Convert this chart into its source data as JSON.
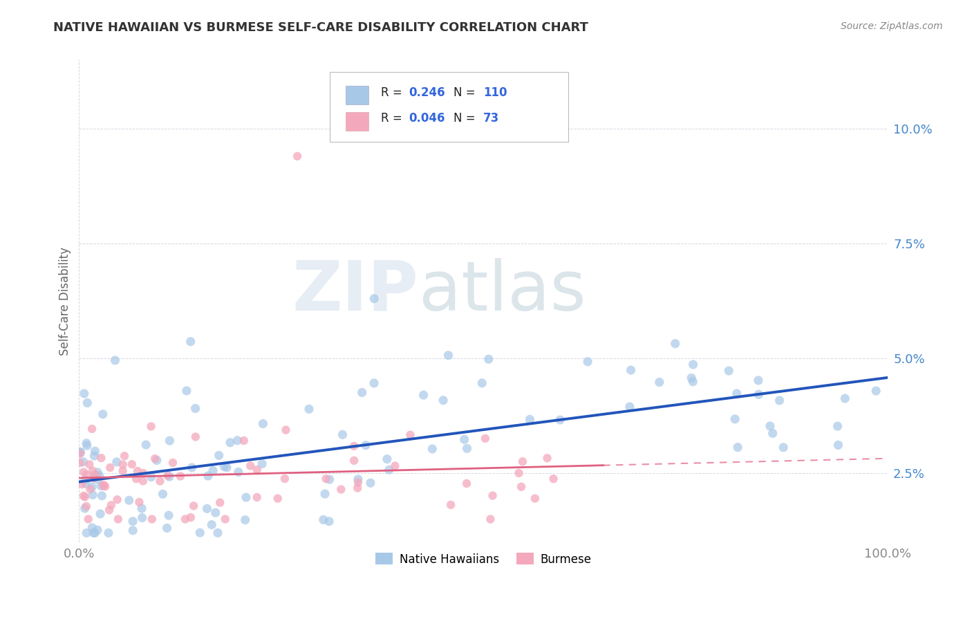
{
  "title": "NATIVE HAWAIIAN VS BURMESE SELF-CARE DISABILITY CORRELATION CHART",
  "source": "Source: ZipAtlas.com",
  "ylabel": "Self-Care Disability",
  "watermark": "ZIPatlas",
  "xlim": [
    0,
    100
  ],
  "ylim": [
    1.0,
    11.5
  ],
  "yticks": [
    2.5,
    5.0,
    7.5,
    10.0
  ],
  "xtick_labels": [
    "0.0%",
    "100.0%"
  ],
  "ytick_labels": [
    "2.5%",
    "5.0%",
    "7.5%",
    "10.0%"
  ],
  "blue_color": "#A8C8E8",
  "pink_color": "#F4A8BC",
  "blue_line_color": "#2255BB",
  "pink_line_color": "#E06080",
  "background_color": "#FFFFFF",
  "grid_color": "#CCCCDD",
  "legend_R1": "0.246",
  "legend_N1": "110",
  "legend_R2": "0.046",
  "legend_N2": "73",
  "label1": "Native Hawaiians",
  "label2": "Burmese",
  "title_color": "#333333",
  "source_color": "#888888",
  "tick_color_y": "#4488CC",
  "tick_color_x": "#888888"
}
